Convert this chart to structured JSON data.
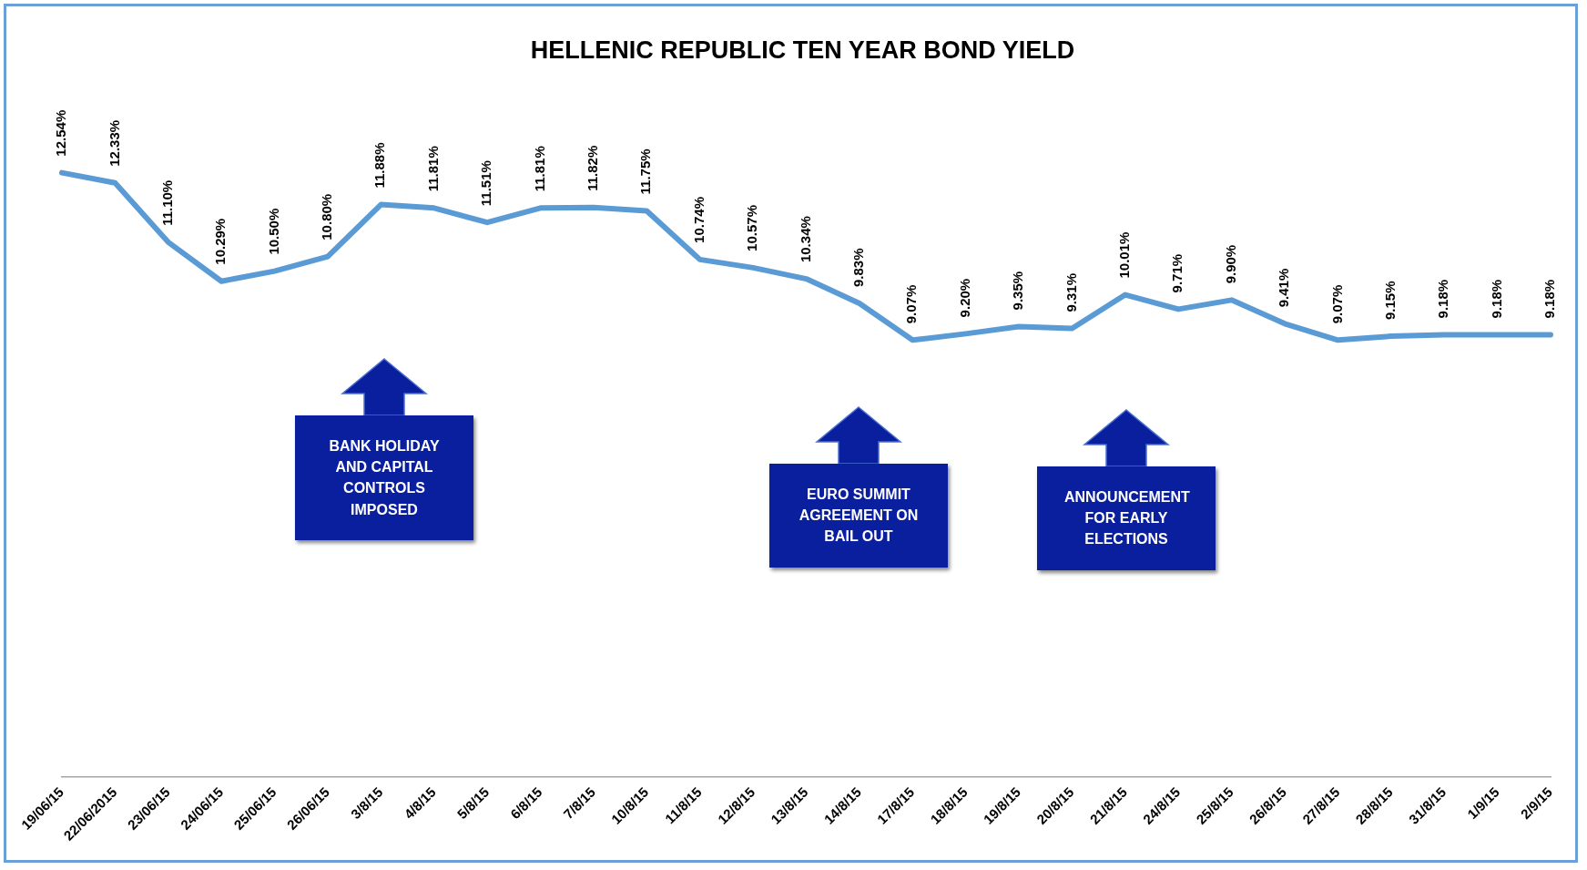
{
  "chart_data": {
    "type": "line",
    "title": "HELLENIC REPUBLIC TEN YEAR BOND YIELD",
    "categories": [
      "19/06/15",
      "22/06/2015",
      "23/06/15",
      "24/06/15",
      "25/06/15",
      "26/06/15",
      "3/8/15",
      "4/8/15",
      "5/8/15",
      "6/8/15",
      "7/8/15",
      "10/8/15",
      "11/8/15",
      "12/8/15",
      "13/8/15",
      "14/8/15",
      "17/8/15",
      "18/8/15",
      "19/8/15",
      "20/8/15",
      "21/8/15",
      "24/8/15",
      "25/8/15",
      "26/8/15",
      "27/8/15",
      "28/8/15",
      "31/8/15",
      "1/9/15",
      "2/9/15"
    ],
    "series": [
      {
        "color": "#5b9bd5",
        "values": [
          12.54,
          12.33,
          11.1,
          10.29,
          10.5,
          10.8,
          11.88,
          11.81,
          11.51,
          11.81,
          11.82,
          11.75,
          10.74,
          10.57,
          10.34,
          9.83,
          9.07,
          9.2,
          9.35,
          9.31,
          10.01,
          9.71,
          9.9,
          9.41,
          9.07,
          9.15,
          9.18,
          9.18,
          9.18
        ],
        "value_labels": [
          "12.54%",
          "12.33%",
          "11.10%",
          "10.29%",
          "10.50%",
          "10.80%",
          "11.88%",
          "11.81%",
          "11.51%",
          "11.81%",
          "11.82%",
          "11.75%",
          "10.74%",
          "10.57%",
          "10.34%",
          "9.83%",
          "9.07%",
          "9.20%",
          "9.35%",
          "9.31%",
          "10.01%",
          "9.71%",
          "9.90%",
          "9.41%",
          "9.07%",
          "9.15%",
          "9.18%",
          "9.18%",
          "9.18%"
        ]
      }
    ],
    "annotations": [
      "BANK HOLIDAY AND CAPITAL CONTROLS IMPOSED",
      "EURO SUMMIT AGREEMENT ON BAIL OUT",
      "ANNOUNCEMENT FOR EARLY ELECTIONS"
    ],
    "grid": false,
    "legend": false,
    "marker": "none",
    "line_style": "solid"
  }
}
